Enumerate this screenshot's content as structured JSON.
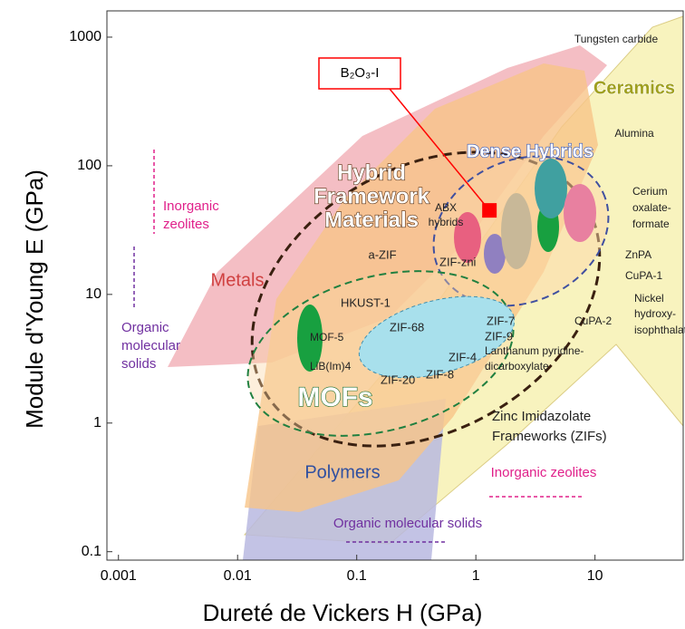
{
  "chart_data": {
    "type": "scatter",
    "x_label": "Dureté de Vickers H (GPa)",
    "y_label": "Module d'Young E (GPa)",
    "x": [
      1.3
    ],
    "series": [
      {
        "name": "B₂O₃-I",
        "color": "#ff0000",
        "values": [
          45
        ]
      }
    ],
    "xlim": [
      0.0008,
      55
    ],
    "ylim": [
      0.086,
      1600
    ],
    "xticks": [
      0.001,
      0.01,
      0.1,
      1,
      10
    ],
    "yticks": [
      0.1,
      1,
      10,
      100,
      1000
    ],
    "log_x": true,
    "log_y": true,
    "grid": false,
    "annotations": [
      "Metals",
      "Ceramics",
      "Polymers",
      "MOFs",
      "Hybrid",
      "Framework",
      "Materials",
      "Dense Hybrids",
      "Inorganic",
      "zeolites",
      "Organic",
      "molecular",
      "solids",
      "Inorganic zeolites",
      "Organic molecular solids",
      "Tungsten carbide",
      "Alumina",
      "Cerium",
      "oxalate-",
      "formate",
      "ZnPA",
      "CuPA-1",
      "Nickel",
      "hydroxy-",
      "isophthalate",
      "CuPA-2",
      "Lanthanum pyridine-",
      "dicarboxylate",
      "Zinc Imidazolate",
      "Frameworks (ZIFs)",
      "a-ZIF",
      "ZIF-zni",
      "HKUST-1",
      "ZIF-7",
      "ZIF-9",
      "ZIF-68",
      "ZIF-4",
      "ZIF-20",
      "ZIF-8",
      "LiB(Im)4",
      "MOF-5",
      "ABX",
      "hybrids"
    ]
  }
}
